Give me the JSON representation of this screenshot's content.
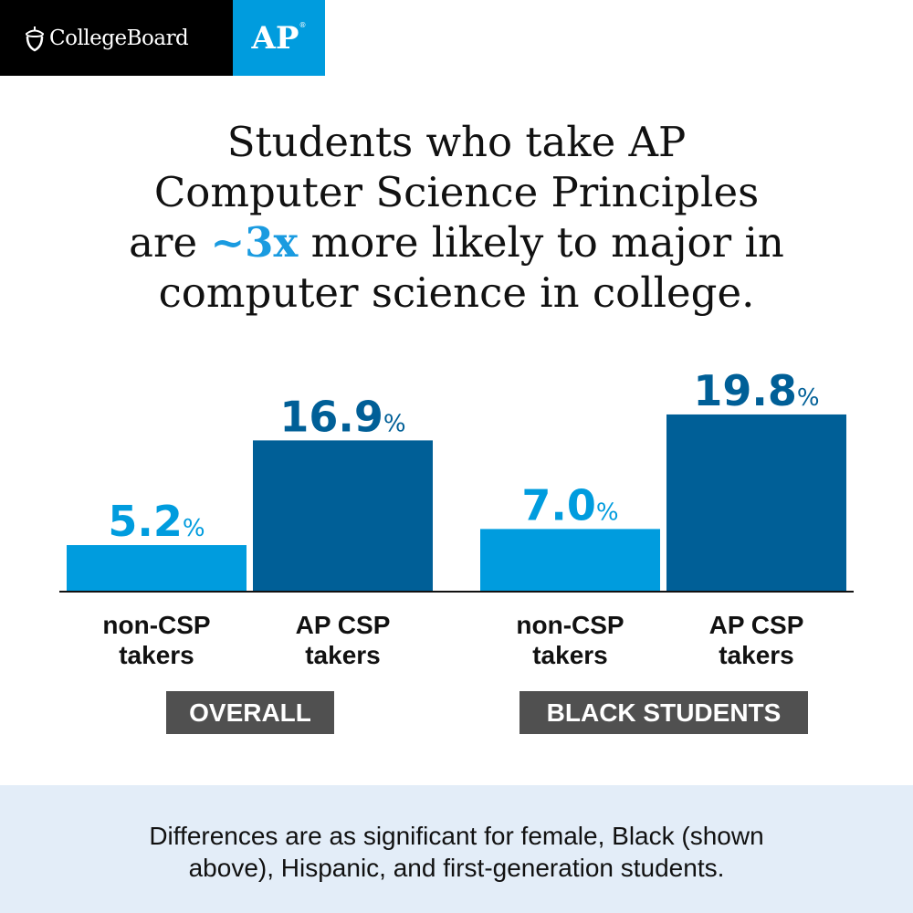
{
  "brand": {
    "college_board": "CollegeBoard",
    "ap": "AP",
    "ap_mark": "®"
  },
  "headline": {
    "line1": "Students who take AP",
    "line2": "Computer Science Principles",
    "line3_pre": "are ",
    "line3_accent": "~3x",
    "line3_post": " more likely to major in",
    "line4": "computer science in college."
  },
  "chart_data": {
    "type": "bar",
    "groups": [
      "OVERALL",
      "BLACK STUDENTS"
    ],
    "categories": [
      "non-CSP takers",
      "AP CSP takers",
      "non-CSP takers",
      "AP CSP takers"
    ],
    "category_lines": [
      [
        "non-CSP",
        "takers"
      ],
      [
        "AP CSP",
        "takers"
      ],
      [
        "non-CSP",
        "takers"
      ],
      [
        "AP CSP",
        "takers"
      ]
    ],
    "values": [
      5.2,
      16.9,
      7.0,
      19.8
    ],
    "value_labels": [
      "5.2",
      "16.9",
      "7.0",
      "19.8"
    ],
    "unit": "%",
    "colors": [
      "#009cde",
      "#005f97",
      "#009cde",
      "#005f97"
    ],
    "grid": false
  },
  "footer": {
    "line1": "Differences are as significant for female, Black (shown",
    "line2": "above), Hispanic, and first-generation students."
  }
}
